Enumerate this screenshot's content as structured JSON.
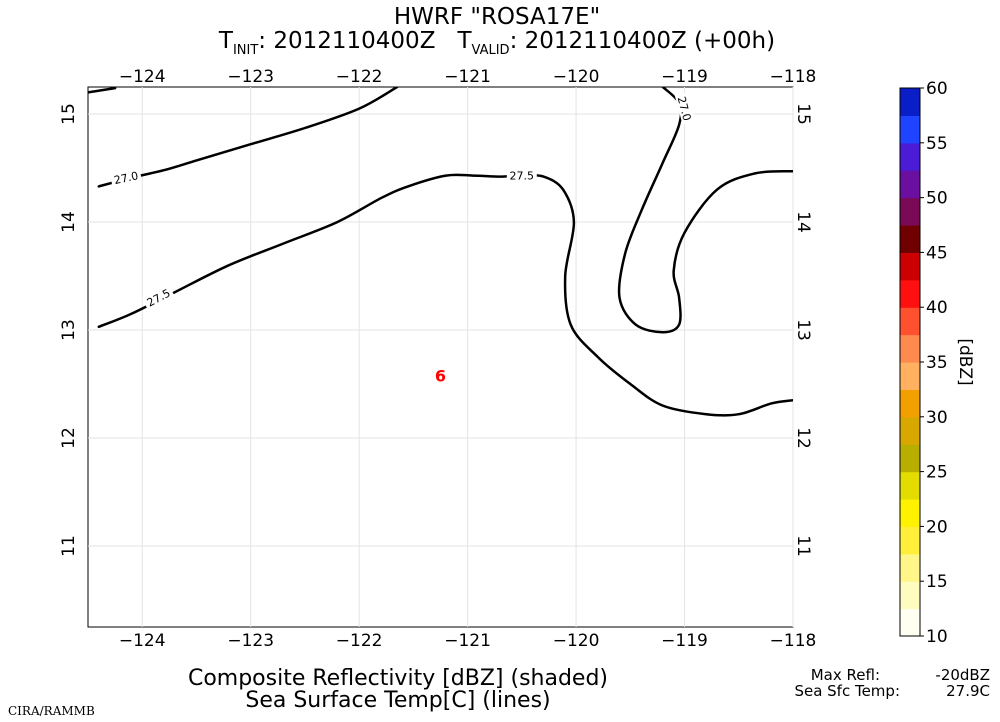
{
  "title": {
    "line1": "HWRF \"ROSA17E\"",
    "t_letter": "T",
    "init_sub": "INIT",
    "init_value": ": 2012110400Z",
    "valid_sub": "VALID",
    "valid_value": ": 2012110400Z (+00h)"
  },
  "footer": {
    "line1": "Composite Reflectivity [dBZ] (shaded)",
    "line2": "Sea Surface Temp[C] (lines)",
    "credit": "CIRA/RAMMB",
    "max_refl_label": "Max Refl:",
    "max_refl_value": "-20dBZ",
    "sst_label": "Sea Sfc Temp:",
    "sst_value": "27.9C"
  },
  "colorbar": {
    "unit_label": "[dBZ]",
    "min": 10,
    "max": 60,
    "ticks": [
      10,
      15,
      20,
      25,
      30,
      35,
      40,
      45,
      50,
      55,
      60
    ],
    "stops": [
      {
        "v": 10,
        "c": "#fffff2"
      },
      {
        "v": 12.5,
        "c": "#fffcc0"
      },
      {
        "v": 15,
        "c": "#fff68a"
      },
      {
        "v": 17.5,
        "c": "#ffef3a"
      },
      {
        "v": 20,
        "c": "#fff200"
      },
      {
        "v": 22.5,
        "c": "#e2dc00"
      },
      {
        "v": 25,
        "c": "#b8ae00"
      },
      {
        "v": 27.5,
        "c": "#d8a800"
      },
      {
        "v": 30,
        "c": "#f2a000"
      },
      {
        "v": 32.5,
        "c": "#ffb060"
      },
      {
        "v": 35,
        "c": "#ff8a50"
      },
      {
        "v": 37.5,
        "c": "#ff5030"
      },
      {
        "v": 40,
        "c": "#ff1010"
      },
      {
        "v": 42.5,
        "c": "#cc0000"
      },
      {
        "v": 45,
        "c": "#700000"
      },
      {
        "v": 47.5,
        "c": "#7a0a55"
      },
      {
        "v": 50,
        "c": "#6a0fa0"
      },
      {
        "v": 52.5,
        "c": "#4a1cd6"
      },
      {
        "v": 55,
        "c": "#1e44ff"
      },
      {
        "v": 57.5,
        "c": "#0a1ec8"
      },
      {
        "v": 60,
        "c": "#02126a"
      }
    ]
  },
  "chart_data": {
    "type": "contour map",
    "xlim": [
      -124.5,
      -118
    ],
    "ylim": [
      10.25,
      15.25
    ],
    "x_ticks": [
      -124,
      -123,
      -122,
      -121,
      -120,
      -119,
      -118
    ],
    "x_tick_labels": [
      "−124",
      "−123",
      "−122",
      "−121",
      "−120",
      "−119",
      "−118"
    ],
    "y_ticks": [
      11,
      12,
      13,
      14,
      15
    ],
    "y_tick_labels": [
      "11",
      "12",
      "13",
      "14",
      "15"
    ],
    "grid": true,
    "storm_symbol": {
      "label": "6",
      "lon": -121.25,
      "lat": 12.58,
      "color": "#ff0000"
    },
    "contours": [
      {
        "level": "27.0",
        "paths": [
          {
            "name": "sst-27-0-northwest",
            "points": [
              [
                -124.5,
                15.2
              ],
              [
                -124.25,
                15.24
              ]
            ]
          },
          {
            "name": "sst-27-0-west",
            "points": [
              [
                -124.4,
                14.33
              ],
              [
                -124.1,
                14.41
              ],
              [
                -123.8,
                14.48
              ],
              [
                -123.5,
                14.57
              ],
              [
                -123.0,
                14.72
              ],
              [
                -122.5,
                14.87
              ],
              [
                -122.0,
                15.05
              ],
              [
                -121.65,
                15.25
              ]
            ]
          },
          {
            "name": "sst-27-0-east",
            "points": [
              [
                -119.2,
                15.25
              ],
              [
                -119.05,
                15.1
              ],
              [
                -119.05,
                14.9
              ],
              [
                -119.2,
                14.55
              ],
              [
                -119.4,
                14.1
              ],
              [
                -119.55,
                13.7
              ],
              [
                -119.6,
                13.3
              ],
              [
                -119.45,
                13.05
              ],
              [
                -119.2,
                12.98
              ],
              [
                -119.05,
                13.05
              ],
              [
                -119.05,
                13.3
              ],
              [
                -119.1,
                13.55
              ],
              [
                -119.0,
                13.9
              ],
              [
                -118.7,
                14.3
              ],
              [
                -118.35,
                14.45
              ],
              [
                -118.0,
                14.47
              ]
            ]
          }
        ]
      },
      {
        "level": "27.5",
        "paths": [
          {
            "name": "sst-27-5-main",
            "points": [
              [
                -124.4,
                13.03
              ],
              [
                -124.1,
                13.15
              ],
              [
                -123.7,
                13.35
              ],
              [
                -123.2,
                13.6
              ],
              [
                -122.7,
                13.8
              ],
              [
                -122.2,
                14.0
              ],
              [
                -121.8,
                14.22
              ],
              [
                -121.55,
                14.33
              ],
              [
                -121.2,
                14.43
              ],
              [
                -120.95,
                14.43
              ],
              [
                -120.7,
                14.42
              ],
              [
                -120.5,
                14.43
              ],
              [
                -120.3,
                14.42
              ],
              [
                -120.12,
                14.3
              ],
              [
                -120.02,
                14.0
              ],
              [
                -120.1,
                13.5
              ],
              [
                -120.05,
                13.05
              ],
              [
                -119.8,
                12.75
              ],
              [
                -119.5,
                12.5
              ],
              [
                -119.2,
                12.3
              ],
              [
                -118.8,
                12.22
              ],
              [
                -118.5,
                12.22
              ],
              [
                -118.2,
                12.32
              ],
              [
                -118.0,
                12.35
              ]
            ]
          }
        ]
      }
    ],
    "contour_labels": [
      {
        "text": "27.0",
        "lon": -124.15,
        "lat": 14.41,
        "angle": -12
      },
      {
        "text": "27.5",
        "lon": -123.85,
        "lat": 13.3,
        "angle": -28
      },
      {
        "text": "27.5",
        "lon": -120.5,
        "lat": 14.43,
        "angle": 0
      },
      {
        "text": "27.0",
        "lon": -119.0,
        "lat": 15.05,
        "angle": 75
      }
    ]
  }
}
